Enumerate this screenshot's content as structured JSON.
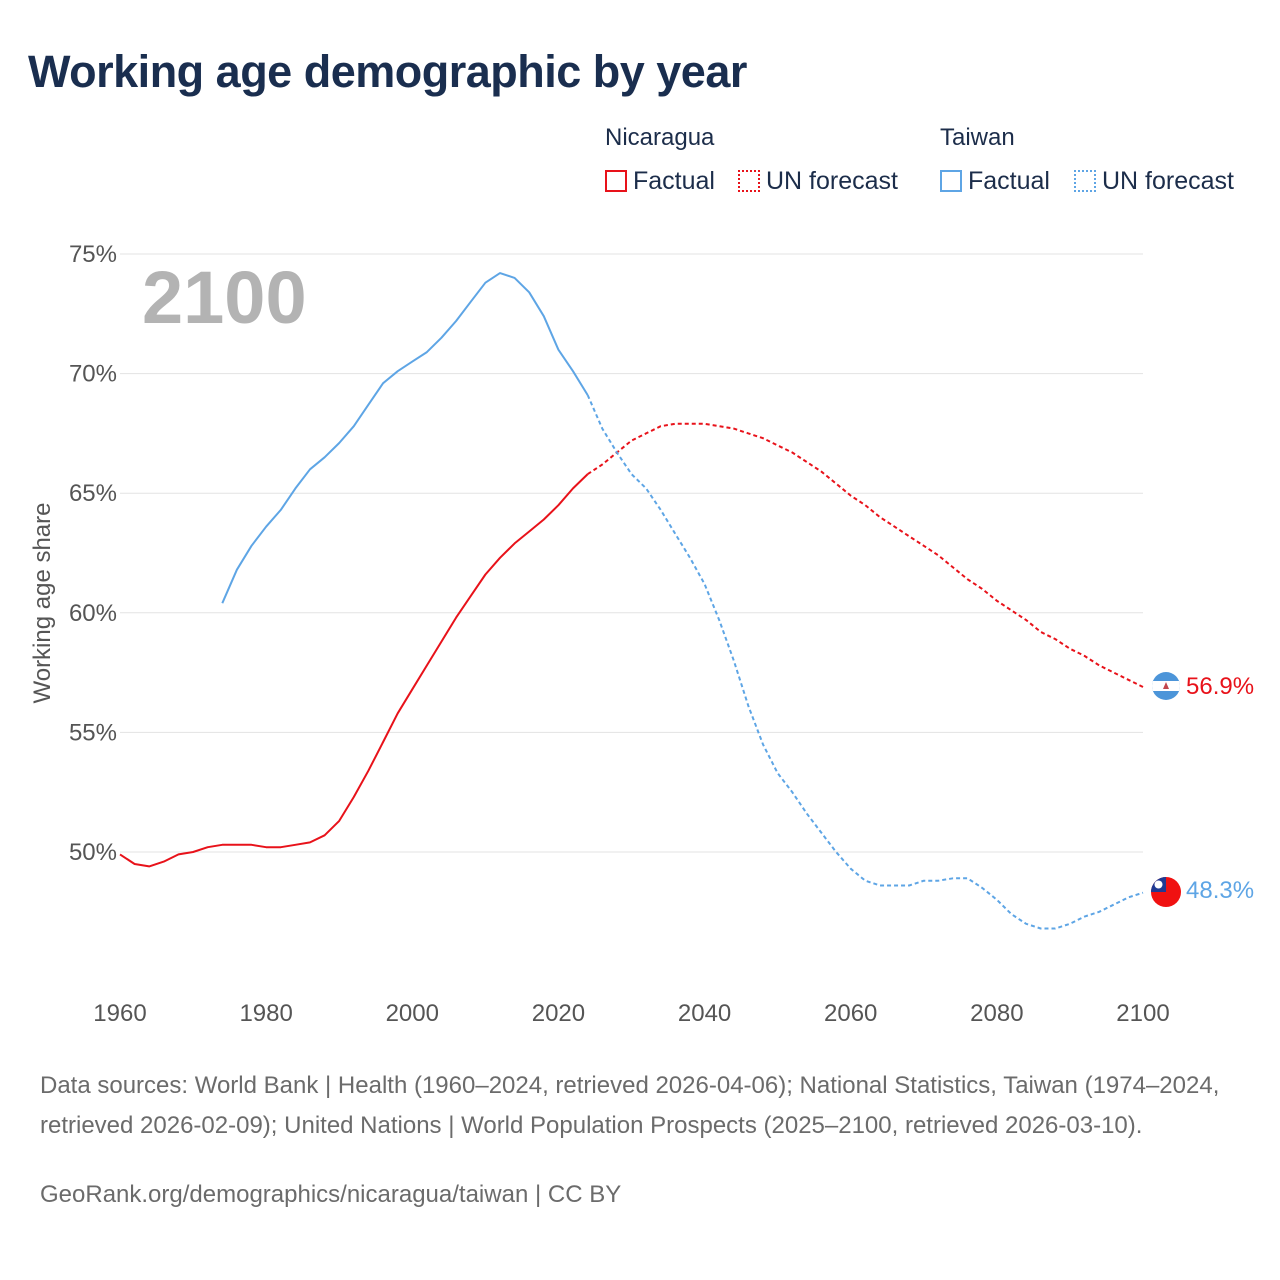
{
  "title": "Working age demographic by year",
  "legend": {
    "nicaragua_title": "Nicaragua",
    "taiwan_title": "Taiwan",
    "factual_label": "Factual",
    "forecast_label": "UN forecast"
  },
  "colors": {
    "nicaragua": "#e8121a",
    "taiwan": "#5ea5e5"
  },
  "year_label": "2100",
  "end_labels": {
    "nicaragua": "56.9%",
    "taiwan": "48.3%"
  },
  "footer": {
    "sources": "Data sources: World Bank | Health (1960–2024, retrieved 2026-04-06); National Statistics, Taiwan (1974–2024, retrieved 2026-02-09); United Nations | World Population Prospects (2025–2100, retrieved 2026-03-10).",
    "link": "GeoRank.org/demographics/nicaragua/taiwan | CC BY"
  },
  "chart_data": {
    "type": "line",
    "title": "Working age demographic by year",
    "xlabel": "",
    "ylabel": "Working age share",
    "xlim": [
      1960,
      2100
    ],
    "ylim": [
      45,
      75
    ],
    "x_ticks": [
      "1960",
      "1980",
      "2000",
      "2020",
      "2040",
      "2060",
      "2080",
      "2100"
    ],
    "y_ticks": [
      "50%",
      "55%",
      "60%",
      "65%",
      "70%",
      "75%"
    ],
    "series": [
      {
        "name": "Nicaragua – Factual",
        "points": [
          [
            1960,
            49.9
          ],
          [
            1962,
            49.5
          ],
          [
            1964,
            49.4
          ],
          [
            1966,
            49.6
          ],
          [
            1968,
            49.9
          ],
          [
            1970,
            50.0
          ],
          [
            1972,
            50.2
          ],
          [
            1974,
            50.3
          ],
          [
            1976,
            50.3
          ],
          [
            1978,
            50.3
          ],
          [
            1980,
            50.2
          ],
          [
            1982,
            50.2
          ],
          [
            1984,
            50.3
          ],
          [
            1986,
            50.4
          ],
          [
            1988,
            50.7
          ],
          [
            1990,
            51.3
          ],
          [
            1992,
            52.3
          ],
          [
            1994,
            53.4
          ],
          [
            1996,
            54.6
          ],
          [
            1998,
            55.8
          ],
          [
            2000,
            56.8
          ],
          [
            2002,
            57.8
          ],
          [
            2004,
            58.8
          ],
          [
            2006,
            59.8
          ],
          [
            2008,
            60.7
          ],
          [
            2010,
            61.6
          ],
          [
            2012,
            62.3
          ],
          [
            2014,
            62.9
          ],
          [
            2016,
            63.4
          ],
          [
            2018,
            63.9
          ],
          [
            2020,
            64.5
          ],
          [
            2022,
            65.2
          ],
          [
            2024,
            65.8
          ]
        ]
      },
      {
        "name": "Nicaragua – UN forecast",
        "points": [
          [
            2024,
            65.8
          ],
          [
            2026,
            66.2
          ],
          [
            2028,
            66.7
          ],
          [
            2030,
            67.2
          ],
          [
            2032,
            67.5
          ],
          [
            2034,
            67.8
          ],
          [
            2036,
            67.9
          ],
          [
            2038,
            67.9
          ],
          [
            2040,
            67.9
          ],
          [
            2042,
            67.8
          ],
          [
            2044,
            67.7
          ],
          [
            2046,
            67.5
          ],
          [
            2048,
            67.3
          ],
          [
            2050,
            67.0
          ],
          [
            2052,
            66.7
          ],
          [
            2054,
            66.3
          ],
          [
            2056,
            65.9
          ],
          [
            2058,
            65.4
          ],
          [
            2060,
            64.9
          ],
          [
            2062,
            64.5
          ],
          [
            2064,
            64.0
          ],
          [
            2066,
            63.6
          ],
          [
            2068,
            63.2
          ],
          [
            2070,
            62.8
          ],
          [
            2072,
            62.4
          ],
          [
            2074,
            61.9
          ],
          [
            2076,
            61.4
          ],
          [
            2078,
            61.0
          ],
          [
            2080,
            60.5
          ],
          [
            2082,
            60.1
          ],
          [
            2084,
            59.7
          ],
          [
            2086,
            59.2
          ],
          [
            2088,
            58.9
          ],
          [
            2090,
            58.5
          ],
          [
            2092,
            58.2
          ],
          [
            2094,
            57.8
          ],
          [
            2096,
            57.5
          ],
          [
            2098,
            57.2
          ],
          [
            2100,
            56.9
          ]
        ]
      },
      {
        "name": "Taiwan – Factual",
        "points": [
          [
            1974,
            60.4
          ],
          [
            1976,
            61.8
          ],
          [
            1978,
            62.8
          ],
          [
            1980,
            63.6
          ],
          [
            1982,
            64.3
          ],
          [
            1984,
            65.2
          ],
          [
            1986,
            66.0
          ],
          [
            1988,
            66.5
          ],
          [
            1990,
            67.1
          ],
          [
            1992,
            67.8
          ],
          [
            1994,
            68.7
          ],
          [
            1996,
            69.6
          ],
          [
            1998,
            70.1
          ],
          [
            2000,
            70.5
          ],
          [
            2002,
            70.9
          ],
          [
            2004,
            71.5
          ],
          [
            2006,
            72.2
          ],
          [
            2008,
            73.0
          ],
          [
            2010,
            73.8
          ],
          [
            2012,
            74.2
          ],
          [
            2014,
            74.0
          ],
          [
            2016,
            73.4
          ],
          [
            2018,
            72.4
          ],
          [
            2020,
            71.0
          ],
          [
            2022,
            70.1
          ],
          [
            2024,
            69.1
          ]
        ]
      },
      {
        "name": "Taiwan – UN forecast",
        "points": [
          [
            2024,
            69.1
          ],
          [
            2026,
            67.7
          ],
          [
            2028,
            66.7
          ],
          [
            2030,
            65.8
          ],
          [
            2032,
            65.2
          ],
          [
            2034,
            64.3
          ],
          [
            2036,
            63.3
          ],
          [
            2038,
            62.3
          ],
          [
            2040,
            61.2
          ],
          [
            2042,
            59.7
          ],
          [
            2044,
            58.0
          ],
          [
            2046,
            56.1
          ],
          [
            2048,
            54.5
          ],
          [
            2050,
            53.3
          ],
          [
            2052,
            52.5
          ],
          [
            2054,
            51.6
          ],
          [
            2056,
            50.8
          ],
          [
            2058,
            50.0
          ],
          [
            2060,
            49.3
          ],
          [
            2062,
            48.8
          ],
          [
            2064,
            48.6
          ],
          [
            2066,
            48.6
          ],
          [
            2068,
            48.6
          ],
          [
            2070,
            48.8
          ],
          [
            2072,
            48.8
          ],
          [
            2074,
            48.9
          ],
          [
            2076,
            48.9
          ],
          [
            2078,
            48.5
          ],
          [
            2080,
            48.0
          ],
          [
            2082,
            47.4
          ],
          [
            2084,
            47.0
          ],
          [
            2086,
            46.8
          ],
          [
            2088,
            46.8
          ],
          [
            2090,
            47.0
          ],
          [
            2092,
            47.3
          ],
          [
            2094,
            47.5
          ],
          [
            2096,
            47.8
          ],
          [
            2098,
            48.1
          ],
          [
            2100,
            48.3
          ]
        ]
      }
    ]
  }
}
